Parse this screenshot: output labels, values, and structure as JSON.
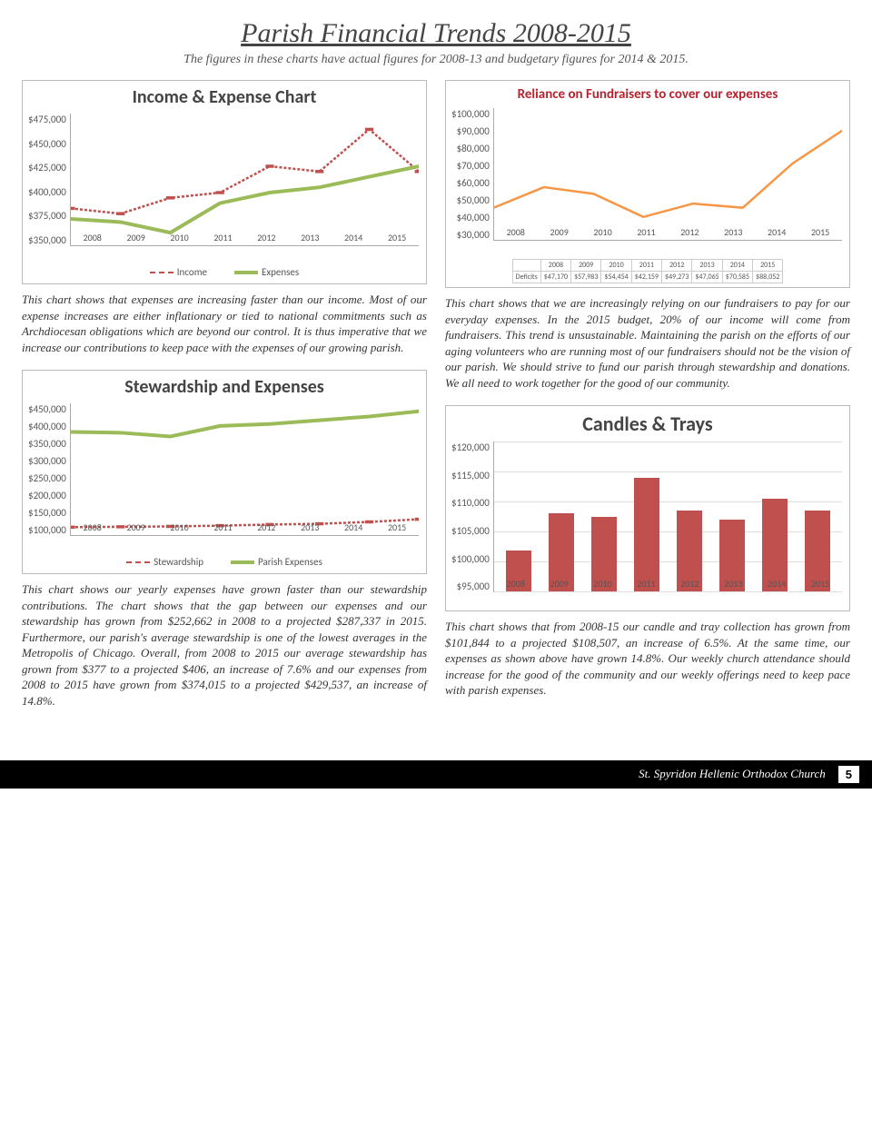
{
  "page_title": "Parish Financial Trends 2008-2015",
  "page_sub": "The figures in these charts have actual figures for 2008-13 and budgetary figures for 2014 & 2015.",
  "years": [
    "2008",
    "2009",
    "2010",
    "2011",
    "2012",
    "2013",
    "2014",
    "2015"
  ],
  "chart1": {
    "title": "Income & Expense Chart",
    "ylabels": [
      "$475,000",
      "$450,000",
      "$425,000",
      "$400,000",
      "$375,000",
      "$350,000"
    ],
    "ymin": 350000,
    "ymax": 475000,
    "income": [
      385000,
      380000,
      395000,
      400000,
      425000,
      420000,
      460000,
      420000
    ],
    "expenses": [
      375000,
      372000,
      362000,
      390000,
      400000,
      405000,
      415000,
      425000
    ],
    "income_color": "#c0504d",
    "expenses_color": "#9bbb59",
    "legend": [
      "Income",
      "Expenses"
    ]
  },
  "text1": "This chart shows that expenses are increasing faster than our income. Most of our expense increases are either inflationary or tied to national commitments such as Archdiocesan obligations which are beyond our control. It is thus imperative that we increase our contributions to keep pace with the expenses of our growing parish.",
  "chart2": {
    "title": "Reliance on Fundraisers to cover our expenses",
    "ylabels": [
      "$100,000",
      "$90,000",
      "$80,000",
      "$70,000",
      "$60,000",
      "$50,000",
      "$40,000",
      "$30,000"
    ],
    "ymin": 30000,
    "ymax": 100000,
    "values": [
      47170,
      57983,
      54454,
      42159,
      49273,
      47065,
      70585,
      88052
    ],
    "color": "#f79646",
    "def_label": "Deficits",
    "def_values": [
      "$47,170",
      "$57,983",
      "$54,454",
      "$42,159",
      "$49,273",
      "$47,065",
      "$70,585",
      "$88,052"
    ]
  },
  "text2": "This chart shows that we are increasingly relying on our fundraisers to pay for our everyday expenses. In the 2015 budget, 20% of our income will come from fundraisers. This trend is unsustainable. Maintaining the parish on the efforts of our aging volunteers who are running most of our fundraisers should not be the vision of our parish. We should strive to fund our parish through stewardship and donations. We all need to work together for the good of our community.",
  "chart3": {
    "title": "Stewardship and Expenses",
    "ylabels": [
      "$450,000",
      "$400,000",
      "$350,000",
      "$300,000",
      "$250,000",
      "$200,000",
      "$150,000",
      "$100,000"
    ],
    "ymin": 100000,
    "ymax": 450000,
    "stewardship": [
      121000,
      122000,
      123000,
      125000,
      128000,
      130000,
      135000,
      142000
    ],
    "expenses": [
      374000,
      372000,
      362000,
      390000,
      395000,
      405000,
      415000,
      429000
    ],
    "stew_color": "#c0504d",
    "exp_color": "#9bbb59",
    "legend": [
      "Stewardship",
      "Parish Expenses"
    ]
  },
  "text3": "This chart shows our yearly expenses have grown faster than our stewardship contributions. The chart shows that the gap between our expenses and our stewardship has grown from $252,662 in 2008 to a projected $287,337 in 2015. Furthermore, our parish's average stewardship is one of the lowest averages in the Metropolis of Chicago. Overall, from 2008 to 2015 our average stewardship has grown from $377 to a projected $406, an increase of 7.6% and our expenses from 2008 to 2015 have grown from $374,015 to a projected $429,537, an increase of 14.8%.",
  "chart4": {
    "title": "Candles & Trays",
    "ylabels": [
      "$120,000",
      "$115,000",
      "$110,000",
      "$105,000",
      "$100,000",
      "$95,000"
    ],
    "ymin": 95000,
    "ymax": 120000,
    "values": [
      101844,
      108000,
      107500,
      114000,
      108500,
      107000,
      110500,
      108500
    ],
    "color": "#c0504d"
  },
  "text4": "This chart shows that from 2008-15 our candle and tray collection has grown from $101,844 to a projected $108,507, an increase of 6.5%. At the same time, our expenses as shown above have grown 14.8%. Our weekly church attendance should increase for the good of the community and our weekly offerings need to keep pace with parish expenses.",
  "footer_text": "St. Spyridon Hellenic Orthodox Church",
  "page_num": "5"
}
